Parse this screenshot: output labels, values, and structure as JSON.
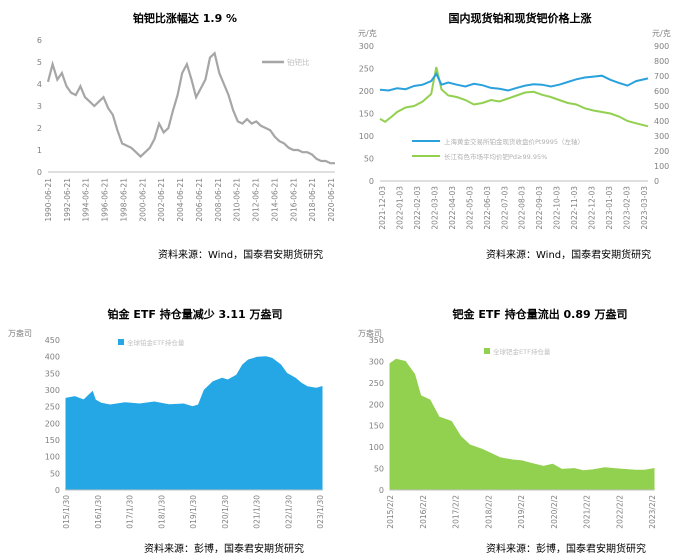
{
  "colors": {
    "pt_pd_ratio": "#a6a6a6",
    "pt_price": "#2aa1dc",
    "pd_price": "#92d050",
    "pt_etf": "#25a7e6",
    "pd_etf": "#92d050",
    "axis_text": "#808080"
  },
  "panels": [
    {
      "title": "铂钯比涨幅达 1.9 %",
      "source": "资料来源：Wind，国泰君安期货研究"
    },
    {
      "title": "国内现货铂和现货钯价格上涨",
      "source": "资料来源：Wind，国泰君安期货研究"
    },
    {
      "title": "铂金 ETF 持仓量减少 3.11 万盎司",
      "source": "资料来源：彭博，国泰君安期货研究"
    },
    {
      "title": "钯金 ETF 持仓量流出 0.89 万盎司",
      "source": "资料来源：彭博，国泰君安期货研究"
    }
  ],
  "chart_data": [
    {
      "type": "line",
      "title": "铂钯比涨幅达 1.9 %",
      "ylim": [
        0,
        6
      ],
      "y_ticks": [
        "0",
        "1",
        "2",
        "3",
        "4",
        "5",
        "6"
      ],
      "x_ticks": [
        "1990-06-21",
        "1992-06-21",
        "1994-06-21",
        "1996-06-21",
        "1998-06-21",
        "2000-06-21",
        "2002-06-21",
        "2004-06-21",
        "2006-06-21",
        "2008-06-21",
        "2010-06-21",
        "2012-06-21",
        "2014-06-21",
        "2016-06-21",
        "2018-06-21",
        "2020-06-21"
      ],
      "legend": "铂钯比",
      "legend_position": "top-right",
      "series": [
        {
          "name": "铂钯比",
          "x": [
            1990.0,
            1990.5,
            1991.0,
            1991.5,
            1992.0,
            1992.5,
            1993.0,
            1993.5,
            1994.0,
            1994.5,
            1995.0,
            1995.5,
            1996.0,
            1996.5,
            1997.0,
            1997.5,
            1998.0,
            1998.5,
            1999.0,
            1999.5,
            2000.0,
            2000.5,
            2001.0,
            2001.5,
            2002.0,
            2002.5,
            2003.0,
            2003.5,
            2004.0,
            2004.5,
            2005.0,
            2005.5,
            2006.0,
            2006.5,
            2007.0,
            2007.5,
            2008.0,
            2008.5,
            2009.0,
            2009.5,
            2010.0,
            2010.5,
            2011.0,
            2011.5,
            2012.0,
            2012.5,
            2013.0,
            2013.5,
            2014.0,
            2014.5,
            2015.0,
            2015.5,
            2016.0,
            2016.5,
            2017.0,
            2017.5,
            2018.0,
            2018.5,
            2019.0,
            2019.5,
            2020.0,
            2020.5,
            2021.0
          ],
          "values": [
            4.1,
            4.9,
            4.2,
            4.5,
            3.9,
            3.6,
            3.5,
            3.9,
            3.4,
            3.2,
            3.0,
            3.2,
            3.4,
            2.9,
            2.6,
            1.9,
            1.3,
            1.2,
            1.1,
            0.9,
            0.7,
            0.9,
            1.1,
            1.5,
            2.2,
            1.8,
            2.0,
            2.8,
            3.5,
            4.5,
            4.9,
            4.2,
            3.4,
            3.8,
            4.2,
            5.2,
            5.4,
            4.5,
            4.0,
            3.5,
            2.8,
            2.3,
            2.2,
            2.4,
            2.2,
            2.3,
            2.1,
            2.0,
            1.9,
            1.6,
            1.4,
            1.3,
            1.1,
            1.0,
            1.0,
            0.9,
            0.9,
            0.8,
            0.6,
            0.5,
            0.5,
            0.4,
            0.4
          ]
        }
      ]
    },
    {
      "type": "line",
      "title": "国内现货铂和现货钯价格上涨",
      "left_unit": "元/克",
      "right_unit": "元/克",
      "ylim_left": [
        0,
        300
      ],
      "y_ticks_left": [
        "0",
        "50",
        "100",
        "150",
        "200",
        "250",
        "300"
      ],
      "ylim_right": [
        0,
        900
      ],
      "y_ticks_right": [
        "0",
        "100",
        "200",
        "300",
        "400",
        "500",
        "600",
        "700",
        "800",
        "900"
      ],
      "x_ticks": [
        "2021-12-03",
        "2022-01-03",
        "2022-02-03",
        "2022-03-03",
        "2022-04-03",
        "2022-05-03",
        "2022-06-03",
        "2022-07-03",
        "2022-08-03",
        "2022-09-03",
        "2022-10-03",
        "2022-11-03",
        "2022-12-03",
        "2023-01-03",
        "2023-02-03",
        "2023-03-03"
      ],
      "legend_position": "center",
      "series": [
        {
          "name": "上海黄金交易所铂金现货收盘价Pt9995（左轴）",
          "axis": "left",
          "x_index": [
            0.0,
            0.5,
            1.0,
            1.5,
            2.0,
            2.5,
            3.0,
            3.3,
            3.6,
            4.0,
            4.5,
            5.0,
            5.5,
            6.0,
            6.5,
            7.0,
            7.5,
            8.0,
            8.5,
            9.0,
            9.5,
            10.0,
            10.5,
            11.0,
            11.5,
            12.0,
            12.5,
            13.0,
            13.5,
            14.0,
            14.5,
            15.0,
            15.7
          ],
          "values": [
            203,
            201,
            206,
            204,
            211,
            214,
            222,
            238,
            214,
            219,
            214,
            210,
            216,
            213,
            207,
            205,
            201,
            207,
            212,
            215,
            214,
            210,
            214,
            220,
            226,
            230,
            232,
            234,
            225,
            218,
            212,
            222,
            228
          ]
        },
        {
          "name": "长江有色市场平均价钯Pd≥99.95%",
          "axis": "right",
          "x_index": [
            0.0,
            0.3,
            0.7,
            1.0,
            1.5,
            2.0,
            2.5,
            3.0,
            3.3,
            3.6,
            4.0,
            4.5,
            5.0,
            5.5,
            6.0,
            6.5,
            7.0,
            7.5,
            8.0,
            8.5,
            9.0,
            9.5,
            10.0,
            10.5,
            11.0,
            11.5,
            12.0,
            12.5,
            13.0,
            13.5,
            14.0,
            14.5,
            15.0,
            15.7
          ],
          "values": [
            415,
            395,
            430,
            460,
            490,
            500,
            530,
            580,
            760,
            610,
            570,
            560,
            540,
            510,
            520,
            540,
            530,
            550,
            570,
            590,
            595,
            575,
            560,
            540,
            520,
            510,
            485,
            470,
            460,
            450,
            430,
            400,
            385,
            365
          ]
        }
      ]
    },
    {
      "type": "area",
      "title": "铂金 ETF 持仓量减少 3.11 万盎司",
      "ylabel": "万盎司",
      "ylim": [
        0,
        450
      ],
      "y_ticks": [
        "0",
        "50",
        "100",
        "150",
        "200",
        "250",
        "300",
        "350",
        "400",
        "450"
      ],
      "x_ticks": [
        "2015/1/30",
        "2016/1/30",
        "2017/1/30",
        "2018/1/30",
        "2019/1/30",
        "2020/1/30",
        "2021/1/30",
        "2022/1/30",
        "2023/1/30"
      ],
      "legend_position": "top-left",
      "series": [
        {
          "name": "全球铂金ETF持仓量",
          "x_index": [
            0.0,
            0.3,
            0.6,
            0.9,
            1.0,
            1.2,
            1.5,
            2.0,
            2.5,
            3.0,
            3.5,
            4.0,
            4.3,
            4.5,
            4.7,
            5.0,
            5.3,
            5.5,
            5.8,
            6.0,
            6.2,
            6.5,
            6.8,
            7.0,
            7.3,
            7.5,
            7.8,
            8.0,
            8.2,
            8.5,
            8.7
          ],
          "values": [
            275,
            280,
            270,
            295,
            270,
            260,
            255,
            262,
            258,
            264,
            256,
            258,
            250,
            255,
            300,
            325,
            335,
            330,
            345,
            375,
            390,
            398,
            400,
            395,
            375,
            350,
            335,
            320,
            310,
            305,
            310
          ]
        }
      ]
    },
    {
      "type": "area",
      "title": "钯金 ETF 持仓量流出 0.89 万盎司",
      "ylabel": "万盎司",
      "ylim": [
        0,
        350
      ],
      "y_ticks": [
        "0",
        "50",
        "100",
        "150",
        "200",
        "250",
        "300",
        "350"
      ],
      "x_ticks": [
        "2015/2/2",
        "2016/2/2",
        "2017/2/2",
        "2018/2/2",
        "2019/2/2",
        "2020/2/2",
        "2021/2/2",
        "2022/2/2",
        "2023/2/2"
      ],
      "legend_position": "top-left",
      "series": [
        {
          "name": "全球钯金ETF持仓量",
          "x_index": [
            0.0,
            0.2,
            0.5,
            0.8,
            1.0,
            1.3,
            1.6,
            2.0,
            2.3,
            2.6,
            3.0,
            3.3,
            3.6,
            4.0,
            4.3,
            4.6,
            5.0,
            5.3,
            5.6,
            6.0,
            6.3,
            6.6,
            7.0,
            7.3,
            7.6,
            8.0,
            8.3,
            8.6
          ],
          "values": [
            295,
            305,
            300,
            270,
            220,
            210,
            170,
            160,
            125,
            105,
            95,
            85,
            75,
            70,
            68,
            62,
            55,
            60,
            48,
            50,
            45,
            47,
            52,
            50,
            48,
            46,
            46,
            50
          ]
        }
      ]
    }
  ]
}
